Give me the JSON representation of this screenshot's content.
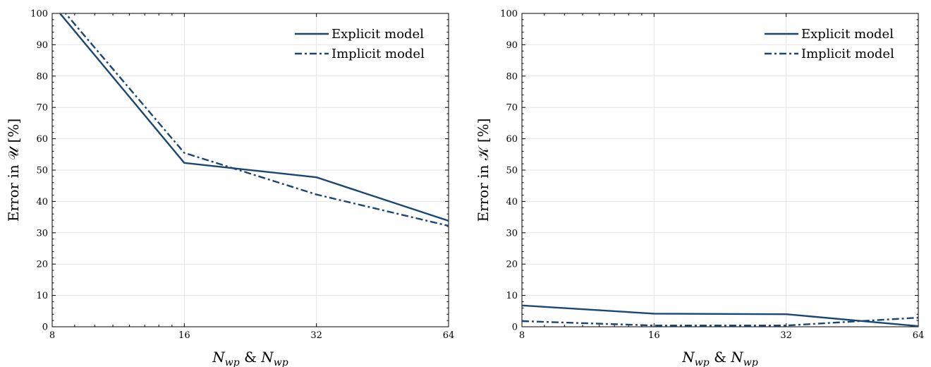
{
  "chart_data": [
    {
      "type": "line",
      "ylabel": "Error in 𝒰 [%]",
      "xlabel": "N_wp & N_wp",
      "xlim": [
        8,
        64
      ],
      "ylim": [
        0,
        100
      ],
      "x_ticks": [
        8,
        16,
        32,
        64
      ],
      "y_ticks": [
        0,
        10,
        20,
        30,
        40,
        50,
        60,
        70,
        80,
        90,
        100
      ],
      "x_scale": "log2",
      "grid": true,
      "legend": "top-right",
      "color": "#1a4676",
      "series": [
        {
          "name": "Explicit model",
          "style": "solid",
          "x": [
            8,
            16,
            32,
            64
          ],
          "y": [
            103,
            52.3,
            47.7,
            33.8
          ]
        },
        {
          "name": "Implicit model",
          "style": "dashdot",
          "x": [
            8,
            16,
            32,
            64
          ],
          "y": [
            105,
            55.5,
            42.2,
            32.2
          ]
        }
      ]
    },
    {
      "type": "line",
      "ylabel": "Error in 𝒦 [%]",
      "xlabel": "N_wp & N_wp",
      "xlim": [
        8,
        64
      ],
      "ylim": [
        0,
        100
      ],
      "x_ticks": [
        8,
        16,
        32,
        64
      ],
      "y_ticks": [
        0,
        10,
        20,
        30,
        40,
        50,
        60,
        70,
        80,
        90,
        100
      ],
      "x_scale": "log2",
      "grid": true,
      "legend": "top-right",
      "color": "#1a4676",
      "series": [
        {
          "name": "Explicit model",
          "style": "solid",
          "x": [
            8,
            16,
            32,
            64
          ],
          "y": [
            6.8,
            4.2,
            4.0,
            0.2
          ]
        },
        {
          "name": "Implicit model",
          "style": "dashdot",
          "x": [
            8,
            16,
            32,
            64
          ],
          "y": [
            1.8,
            0.4,
            0.4,
            2.9
          ]
        }
      ]
    }
  ]
}
